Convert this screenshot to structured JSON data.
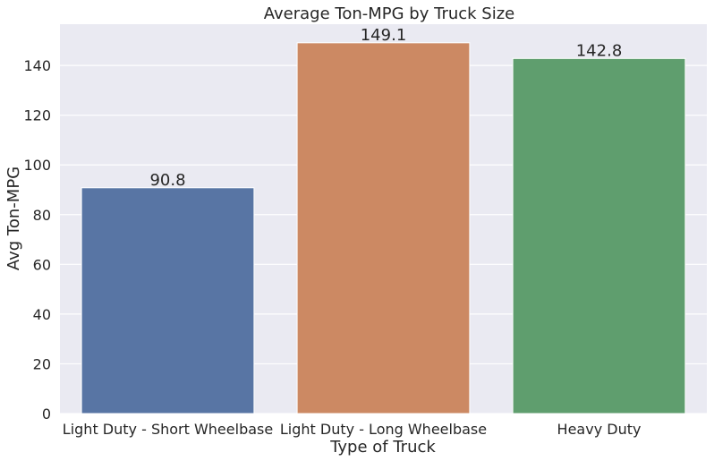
{
  "chart_data": {
    "type": "bar",
    "title": "Average Ton-MPG by Truck Size",
    "xlabel": "Type of Truck",
    "ylabel": "Avg Ton-MPG",
    "categories": [
      "Light Duty - Short Wheelbase",
      "Light Duty - Long Wheelbase",
      "Heavy Duty"
    ],
    "values": [
      90.8,
      149.1,
      142.8
    ],
    "data_labels": [
      "90.8",
      "149.1",
      "142.8"
    ],
    "ylim": [
      0,
      156.6
    ],
    "yticks": [
      0,
      20,
      40,
      60,
      80,
      100,
      120,
      140
    ],
    "ytick_labels": [
      "0",
      "20",
      "40",
      "60",
      "80",
      "100",
      "120",
      "140"
    ],
    "colors": [
      "#5875a4",
      "#cc8963",
      "#5f9e6e"
    ],
    "background": "#eaeaf2",
    "grid": true
  }
}
